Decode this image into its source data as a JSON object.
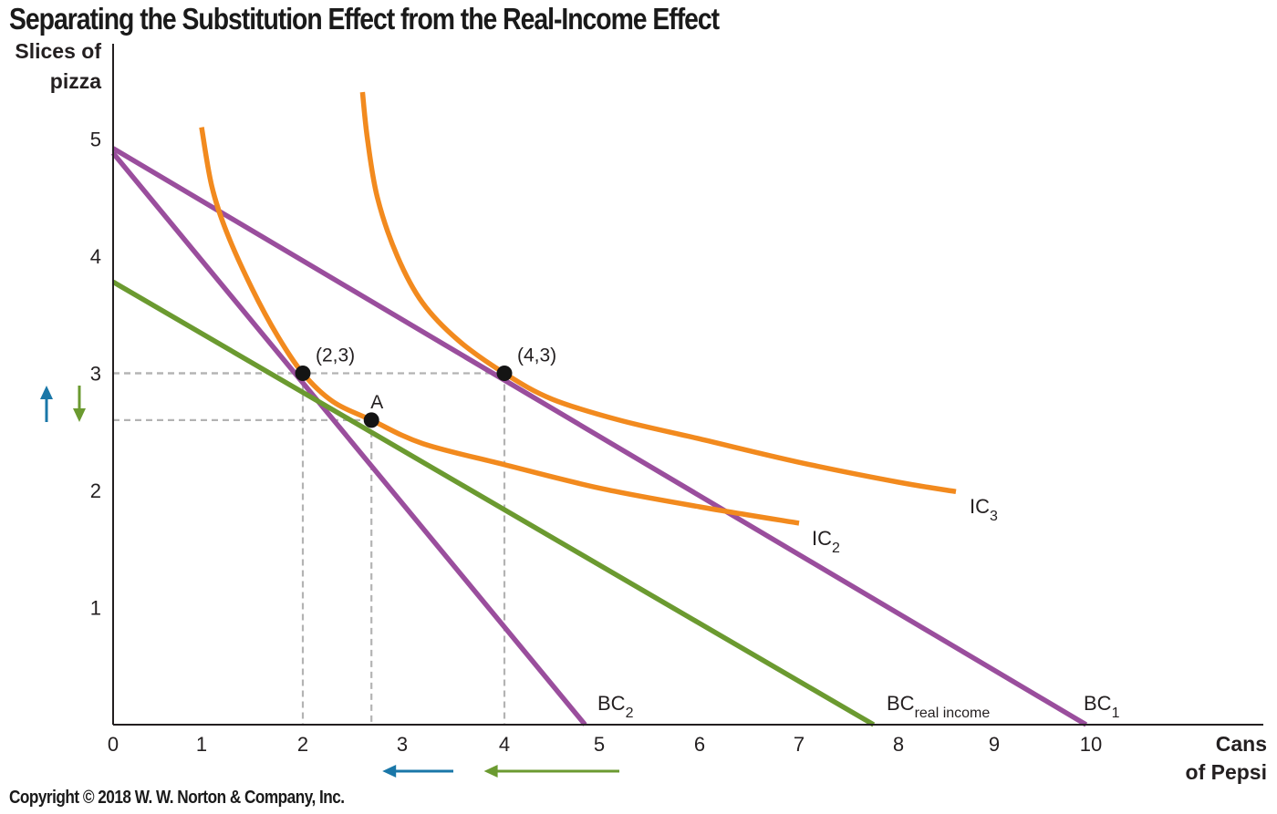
{
  "title": "Separating the Substitution Effect from the Real-Income Effect",
  "copyright": "Copyright © 2018 W. W. Norton & Company, Inc.",
  "colors": {
    "budget": "#9a4e9d",
    "real_income": "#6b9a30",
    "indifference": "#f28a1e",
    "substitution_arrow": "#1a77a8",
    "income_arrow": "#6b9a30",
    "guide": "#b3b3b3"
  },
  "chart_data": {
    "type": "line",
    "title": "Separating the Substitution Effect from the Real-Income Effect",
    "xlabel": [
      "Cans",
      "of Pepsi"
    ],
    "ylabel": [
      "Slices of",
      "pizza"
    ],
    "xlim": [
      0,
      12.2
    ],
    "ylim": [
      0,
      5.7
    ],
    "x_ticks": [
      0,
      1,
      2,
      3,
      4,
      5,
      6,
      7,
      8,
      9,
      10
    ],
    "y_ticks": [
      1,
      2,
      3,
      4,
      5
    ],
    "grid": false,
    "series": [
      {
        "name": "BC",
        "sub": "1",
        "kind": "budget",
        "points": [
          [
            0,
            4.92
          ],
          [
            9.95,
            0
          ]
        ]
      },
      {
        "name": "BC",
        "sub": "2",
        "kind": "budget",
        "points": [
          [
            0,
            4.88
          ],
          [
            4.85,
            0
          ]
        ]
      },
      {
        "name": "BC",
        "sub": "real income",
        "kind": "real_income",
        "points": [
          [
            0,
            3.78
          ],
          [
            7.75,
            0
          ]
        ]
      },
      {
        "name": "IC",
        "sub": "2",
        "kind": "indifference",
        "points": [
          [
            1.0,
            5.1
          ],
          [
            1.1,
            4.6
          ],
          [
            1.25,
            4.2
          ],
          [
            1.5,
            3.72
          ],
          [
            1.75,
            3.32
          ],
          [
            2.0,
            3.0
          ],
          [
            2.3,
            2.76
          ],
          [
            2.69,
            2.6
          ],
          [
            3.2,
            2.4
          ],
          [
            4.0,
            2.22
          ],
          [
            5.0,
            2.02
          ],
          [
            6.0,
            1.86
          ],
          [
            7.0,
            1.72
          ]
        ]
      },
      {
        "name": "IC",
        "sub": "3",
        "kind": "indifference",
        "points": [
          [
            2.6,
            5.4
          ],
          [
            2.65,
            5.0
          ],
          [
            2.75,
            4.5
          ],
          [
            2.95,
            4.0
          ],
          [
            3.2,
            3.6
          ],
          [
            3.55,
            3.28
          ],
          [
            4.0,
            3.0
          ],
          [
            4.5,
            2.78
          ],
          [
            5.2,
            2.6
          ],
          [
            6.0,
            2.44
          ],
          [
            7.0,
            2.24
          ],
          [
            8.0,
            2.07
          ],
          [
            8.6,
            1.99
          ]
        ]
      }
    ],
    "points": [
      {
        "label": "(2,3)",
        "x": 2,
        "y": 3,
        "guides": true
      },
      {
        "label": "(4,3)",
        "x": 4,
        "y": 3,
        "guides": true
      },
      {
        "label": "A",
        "x": 2.69,
        "y": 2.6,
        "guides": true
      }
    ],
    "annotations": {
      "substitution_effect_pepsi": {
        "from": 3.5,
        "to": 2.8,
        "direction": "left"
      },
      "income_effect_pepsi": {
        "from": 5.2,
        "to": 3.8,
        "direction": "left"
      },
      "substitution_effect_pizza": "up",
      "income_effect_pizza": "down"
    }
  }
}
